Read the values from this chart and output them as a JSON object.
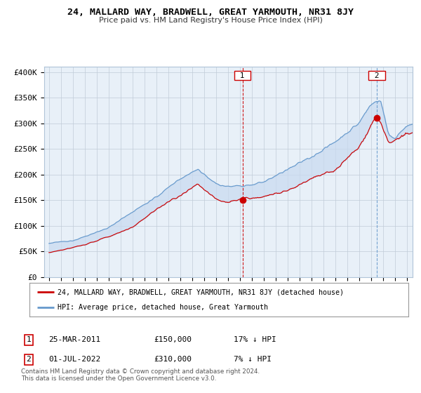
{
  "title": "24, MALLARD WAY, BRADWELL, GREAT YARMOUTH, NR31 8JY",
  "subtitle": "Price paid vs. HM Land Registry's House Price Index (HPI)",
  "ylabel_ticks": [
    "£0",
    "£50K",
    "£100K",
    "£150K",
    "£200K",
    "£250K",
    "£300K",
    "£350K",
    "£400K"
  ],
  "ytick_vals": [
    0,
    50000,
    100000,
    150000,
    200000,
    250000,
    300000,
    350000,
    400000
  ],
  "ylim": [
    0,
    410000
  ],
  "year_start": 1995,
  "year_end": 2025,
  "sale1_date": 2011.23,
  "sale1_value": 150000,
  "sale1_label": "1",
  "sale2_date": 2022.5,
  "sale2_value": 310000,
  "sale2_label": "2",
  "legend_red": "24, MALLARD WAY, BRADWELL, GREAT YARMOUTH, NR31 8JY (detached house)",
  "legend_blue": "HPI: Average price, detached house, Great Yarmouth",
  "footer": "Contains HM Land Registry data © Crown copyright and database right 2024.\nThis data is licensed under the Open Government Licence v3.0.",
  "bg_color": "#e8f0f8",
  "fill_color": "#c8daf0",
  "grid_color": "#c0ccd8",
  "red_line_color": "#cc0000",
  "blue_line_color": "#6699cc",
  "ann1_date": "25-MAR-2011",
  "ann1_price": "£150,000",
  "ann1_hpi": "17% ↓ HPI",
  "ann2_date": "01-JUL-2022",
  "ann2_price": "£310,000",
  "ann2_hpi": "7% ↓ HPI"
}
